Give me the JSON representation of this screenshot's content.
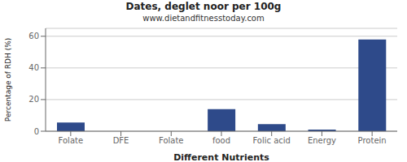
{
  "chart_data": {
    "type": "bar",
    "title": "Dates, deglet noor per 100g",
    "subtitle": "www.dietandfitnesstoday.com",
    "xlabel": "Different Nutrients",
    "ylabel": "Percentage of RDH (%)",
    "categories": [
      "Folate",
      "DFE",
      "Folate",
      "food",
      "Folic acid",
      "Energy",
      "Protein"
    ],
    "values": [
      5.5,
      0.0,
      0.0,
      14.0,
      4.5,
      1.0,
      58.0
    ],
    "color": "#2e4a8a",
    "ylim": [
      0,
      65
    ],
    "yticks": [
      0,
      20,
      40,
      60
    ],
    "grid": true
  }
}
